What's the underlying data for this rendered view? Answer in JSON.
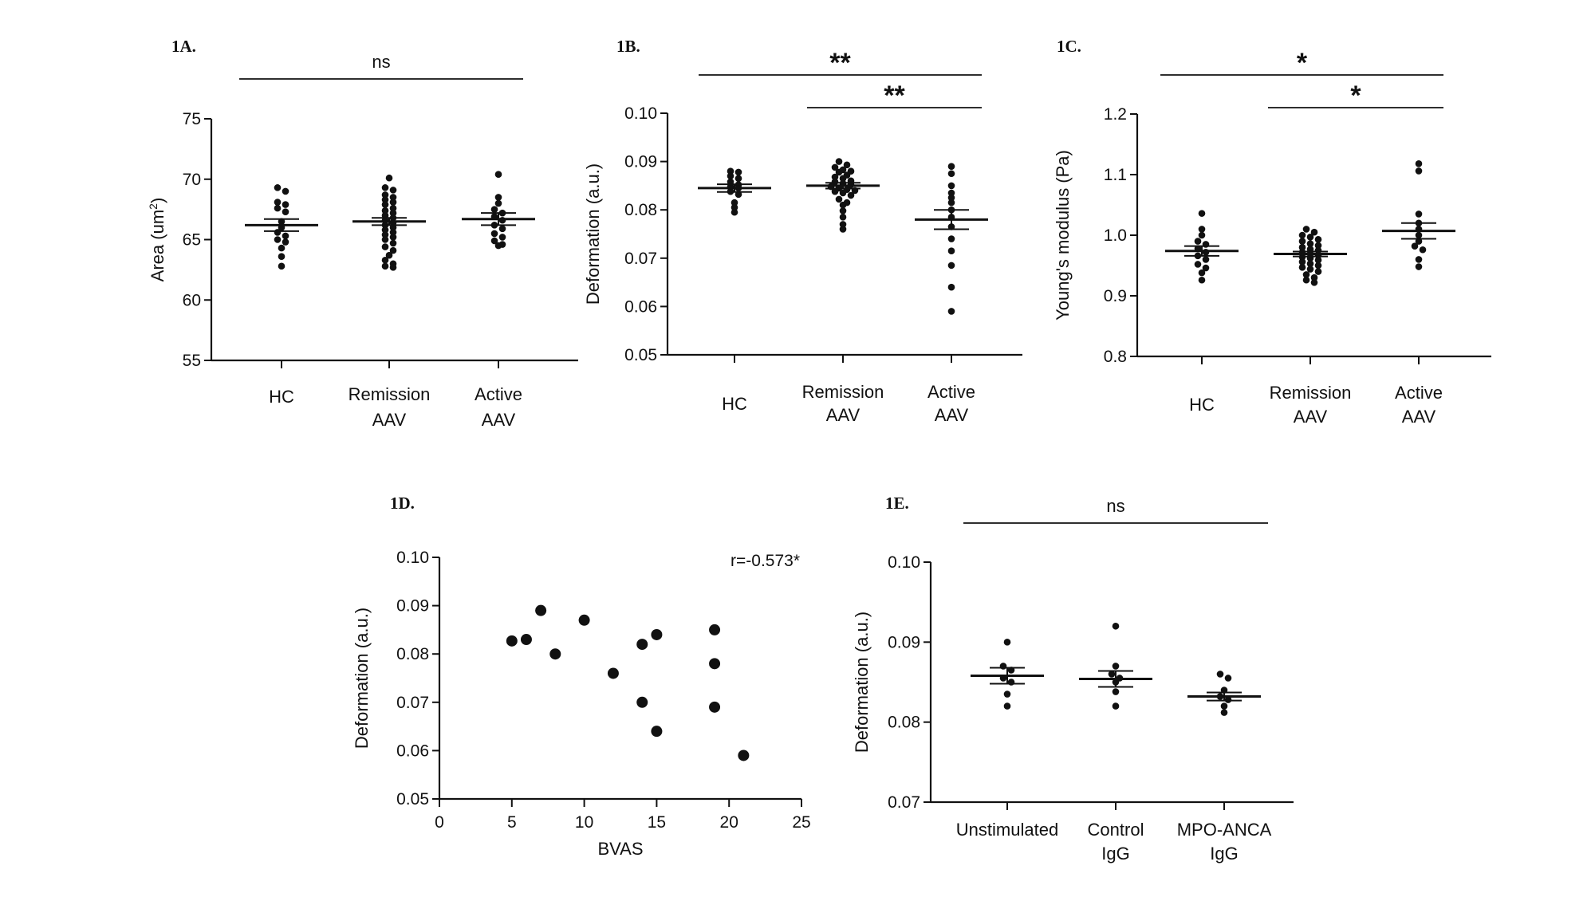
{
  "chart_data": [
    {
      "id": "A",
      "type": "scatter",
      "panel_label": "1A.",
      "ylabel": "Area (um2)",
      "ylabel_main": "Area (um",
      "ylabel_sup": "2",
      "ylabel_close": ")",
      "ylim": [
        55,
        75
      ],
      "yticks": [
        55,
        60,
        65,
        70,
        75
      ],
      "ytick_labels": [
        "55",
        "60",
        "65",
        "70",
        "75"
      ],
      "categories": [
        [
          "HC"
        ],
        [
          "Remission",
          "AAV"
        ],
        [
          "Active",
          "AAV"
        ]
      ],
      "groups": [
        {
          "name": "HC",
          "mean": 66.2,
          "sem": 0.5,
          "values": [
            69.3,
            69.0,
            68.1,
            67.9,
            67.6,
            67.3,
            66.5,
            66.0,
            65.6,
            65.3,
            65.0,
            64.8,
            64.3,
            63.6,
            62.8
          ]
        },
        {
          "name": "Remission AAV",
          "mean": 66.5,
          "sem": 0.3,
          "values": [
            70.1,
            69.3,
            69.1,
            68.7,
            68.5,
            68.3,
            68.1,
            67.9,
            67.6,
            67.4,
            67.2,
            67.0,
            66.8,
            66.6,
            66.4,
            66.2,
            66.0,
            65.8,
            65.6,
            65.4,
            65.2,
            65.0,
            64.7,
            64.4,
            64.1,
            63.7,
            63.3,
            63.0,
            62.8,
            62.7
          ]
        },
        {
          "name": "Active AAV",
          "mean": 66.7,
          "sem": 0.5,
          "values": [
            70.4,
            68.5,
            68.0,
            67.5,
            67.2,
            66.9,
            66.6,
            66.2,
            65.9,
            65.5,
            65.2,
            64.9,
            64.6,
            64.5
          ]
        }
      ],
      "significance": [
        {
          "from": 0,
          "to": 2,
          "label": "ns",
          "style": "text"
        }
      ]
    },
    {
      "id": "B",
      "type": "scatter",
      "panel_label": "1B.",
      "ylabel": "Deformation (a.u.)",
      "ylim": [
        0.05,
        0.1
      ],
      "yticks": [
        0.05,
        0.06,
        0.07,
        0.08,
        0.09,
        0.1
      ],
      "ytick_labels": [
        "0.05",
        "0.06",
        "0.07",
        "0.08",
        "0.09",
        "0.10"
      ],
      "categories": [
        [
          "HC"
        ],
        [
          "Remission",
          "AAV"
        ],
        [
          "Active",
          "AAV"
        ]
      ],
      "groups": [
        {
          "name": "HC",
          "mean": 0.0845,
          "sem": 0.0008,
          "values": [
            0.088,
            0.0878,
            0.087,
            0.0865,
            0.0858,
            0.0852,
            0.0848,
            0.0845,
            0.0838,
            0.0832,
            0.0815,
            0.0805,
            0.0795
          ]
        },
        {
          "name": "Remission AAV",
          "mean": 0.085,
          "sem": 0.0006,
          "values": [
            0.09,
            0.0893,
            0.0888,
            0.0883,
            0.088,
            0.0878,
            0.0872,
            0.0868,
            0.0865,
            0.086,
            0.0858,
            0.0855,
            0.0852,
            0.0848,
            0.0845,
            0.0842,
            0.084,
            0.0838,
            0.0835,
            0.083,
            0.0822,
            0.0815,
            0.081,
            0.0798,
            0.0785,
            0.077,
            0.076
          ]
        },
        {
          "name": "Active AAV",
          "mean": 0.078,
          "sem": 0.002,
          "values": [
            0.089,
            0.0875,
            0.085,
            0.0835,
            0.0825,
            0.0815,
            0.08,
            0.0785,
            0.0765,
            0.074,
            0.0715,
            0.0685,
            0.064,
            0.059
          ]
        }
      ],
      "significance": [
        {
          "from": 0,
          "to": 2,
          "label": "**",
          "style": "stars"
        },
        {
          "from": 1,
          "to": 2,
          "label": "**",
          "style": "stars"
        }
      ]
    },
    {
      "id": "C",
      "type": "scatter",
      "panel_label": "1C.",
      "ylabel": "Young's modulus (Pa)",
      "ylim": [
        0.8,
        1.2
      ],
      "yticks": [
        0.8,
        0.9,
        1.0,
        1.1,
        1.2
      ],
      "ytick_labels": [
        "0.8",
        "0.9",
        "1.0",
        "1.1",
        "1.2"
      ],
      "categories": [
        [
          "HC"
        ],
        [
          "Remission",
          "AAV"
        ],
        [
          "Active",
          "AAV"
        ]
      ],
      "groups": [
        {
          "name": "HC",
          "mean": 0.974,
          "sem": 0.008,
          "values": [
            1.036,
            1.01,
            1.0,
            0.99,
            0.985,
            0.978,
            0.972,
            0.966,
            0.96,
            0.952,
            0.946,
            0.938,
            0.926
          ]
        },
        {
          "name": "Remission AAV",
          "mean": 0.969,
          "sem": 0.004,
          "values": [
            1.01,
            1.005,
            1.0,
            0.997,
            0.993,
            0.99,
            0.986,
            0.983,
            0.98,
            0.977,
            0.975,
            0.972,
            0.969,
            0.967,
            0.964,
            0.962,
            0.959,
            0.956,
            0.953,
            0.95,
            0.947,
            0.944,
            0.94,
            0.935,
            0.93,
            0.926,
            0.922
          ]
        },
        {
          "name": "Active AAV",
          "mean": 1.007,
          "sem": 0.013,
          "values": [
            1.118,
            1.106,
            1.035,
            1.02,
            1.01,
            1.0,
            0.99,
            0.982,
            0.976,
            0.96,
            0.948
          ]
        }
      ],
      "significance": [
        {
          "from": 0,
          "to": 2,
          "label": "*",
          "style": "stars"
        },
        {
          "from": 1,
          "to": 2,
          "label": "*",
          "style": "stars"
        }
      ]
    },
    {
      "id": "D",
      "type": "scatter",
      "panel_label": "1D.",
      "xlabel": "BVAS",
      "ylabel": "Deformation (a.u.)",
      "xlim": [
        0,
        25
      ],
      "xticks": [
        0,
        5,
        10,
        15,
        20,
        25
      ],
      "xtick_labels": [
        "0",
        "5",
        "10",
        "15",
        "20",
        "25"
      ],
      "ylim": [
        0.05,
        0.1
      ],
      "yticks": [
        0.05,
        0.06,
        0.07,
        0.08,
        0.09,
        0.1
      ],
      "ytick_labels": [
        "0.05",
        "0.06",
        "0.07",
        "0.08",
        "0.09",
        "0.10"
      ],
      "annotation": "r=-0.573*",
      "points": [
        {
          "x": 5,
          "y": 0.0827
        },
        {
          "x": 6,
          "y": 0.083
        },
        {
          "x": 7,
          "y": 0.089
        },
        {
          "x": 8,
          "y": 0.08
        },
        {
          "x": 10,
          "y": 0.087
        },
        {
          "x": 12,
          "y": 0.076
        },
        {
          "x": 14,
          "y": 0.082
        },
        {
          "x": 14,
          "y": 0.07
        },
        {
          "x": 15,
          "y": 0.084
        },
        {
          "x": 15,
          "y": 0.064
        },
        {
          "x": 19,
          "y": 0.085
        },
        {
          "x": 19,
          "y": 0.078
        },
        {
          "x": 19,
          "y": 0.069
        },
        {
          "x": 21,
          "y": 0.059
        }
      ]
    },
    {
      "id": "E",
      "type": "scatter",
      "panel_label": "1E.",
      "ylabel": "Deformation (a.u.)",
      "ylim": [
        0.07,
        0.1
      ],
      "yticks": [
        0.07,
        0.08,
        0.09,
        0.1
      ],
      "ytick_labels": [
        "0.07",
        "0.08",
        "0.09",
        "0.10"
      ],
      "categories": [
        [
          "Unstimulated"
        ],
        [
          "Control",
          "IgG"
        ],
        [
          "MPO-ANCA",
          "IgG"
        ]
      ],
      "groups": [
        {
          "name": "Unstimulated",
          "mean": 0.0858,
          "sem": 0.001,
          "values": [
            0.09,
            0.087,
            0.0865,
            0.0855,
            0.085,
            0.0835,
            0.082
          ]
        },
        {
          "name": "Control IgG",
          "mean": 0.0854,
          "sem": 0.001,
          "values": [
            0.092,
            0.087,
            0.086,
            0.0855,
            0.085,
            0.0838,
            0.082
          ]
        },
        {
          "name": "MPO-ANCA IgG",
          "mean": 0.0832,
          "sem": 0.0005,
          "values": [
            0.086,
            0.0855,
            0.084,
            0.0832,
            0.0828,
            0.082,
            0.0812
          ]
        }
      ],
      "significance": [
        {
          "from": 0,
          "to": 2,
          "label": "ns",
          "style": "text"
        }
      ]
    }
  ]
}
